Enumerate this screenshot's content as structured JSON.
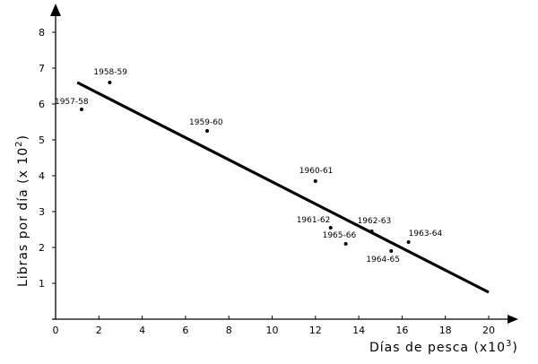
{
  "chart_data": {
    "type": "scatter",
    "title": "",
    "xlabel": "Días de pesca (x10",
    "xlabel_exp": "3",
    "xlabel_close": ")",
    "ylabel": "Libras por día  (x 10",
    "ylabel_exp": "2",
    "ylabel_close": ")",
    "xlim": [
      0,
      20
    ],
    "ylim": [
      0,
      8
    ],
    "xticks": [
      0,
      2,
      4,
      6,
      8,
      10,
      12,
      14,
      16,
      18,
      20
    ],
    "yticks": [
      1,
      2,
      3,
      4,
      5,
      6,
      7,
      8
    ],
    "grid": false,
    "points": [
      {
        "label": "1957-58",
        "x": 1.2,
        "y": 5.85
      },
      {
        "label": "1958-59",
        "x": 2.5,
        "y": 6.6
      },
      {
        "label": "1959-60",
        "x": 7.0,
        "y": 5.25
      },
      {
        "label": "1960-61",
        "x": 12.0,
        "y": 3.85
      },
      {
        "label": "1961-62",
        "x": 12.7,
        "y": 2.55
      },
      {
        "label": "1962-63",
        "x": 14.6,
        "y": 2.45
      },
      {
        "label": "1963-64",
        "x": 16.3,
        "y": 2.15
      },
      {
        "label": "1965-66",
        "x": 13.4,
        "y": 2.1
      },
      {
        "label": "1964-65",
        "x": 15.5,
        "y": 1.9
      }
    ],
    "regression_line": {
      "x": [
        1.0,
        20.0
      ],
      "y": [
        6.6,
        0.75
      ]
    }
  }
}
